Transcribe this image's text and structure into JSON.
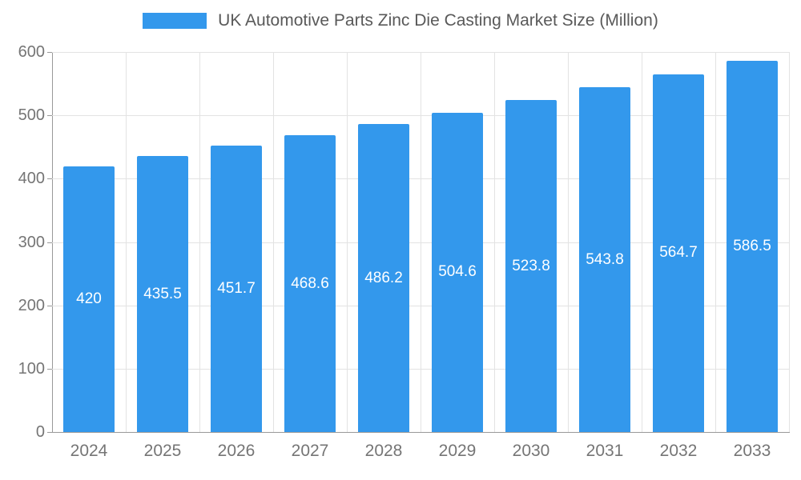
{
  "colors": {
    "bar": "#3398EC",
    "axis": "#999999",
    "grid": "#e3e3e3",
    "tick_text": "#757575",
    "title_text": "#595959",
    "bar_label_text": "#ffffff"
  },
  "chart_data": {
    "type": "bar",
    "title": "UK Automotive Parts Zinc Die Casting Market Size (Million)",
    "categories": [
      "2024",
      "2025",
      "2026",
      "2027",
      "2028",
      "2029",
      "2030",
      "2031",
      "2032",
      "2033"
    ],
    "values": [
      420,
      435.5,
      451.7,
      468.6,
      486.2,
      504.6,
      523.8,
      543.8,
      564.7,
      586.5
    ],
    "value_labels": [
      "420",
      "435.5",
      "451.7",
      "468.6",
      "486.2",
      "504.6",
      "523.8",
      "543.8",
      "564.7",
      "586.5"
    ],
    "xlabel": "",
    "ylabel": "",
    "ylim": [
      0,
      600
    ],
    "y_ticks": [
      0,
      100,
      200,
      300,
      400,
      500,
      600
    ],
    "grid": "on",
    "legend_position": "top-center",
    "bar_labels_position": "center-inside",
    "series_name": "UK Automotive Parts Zinc Die Casting Market Size (Million)"
  }
}
